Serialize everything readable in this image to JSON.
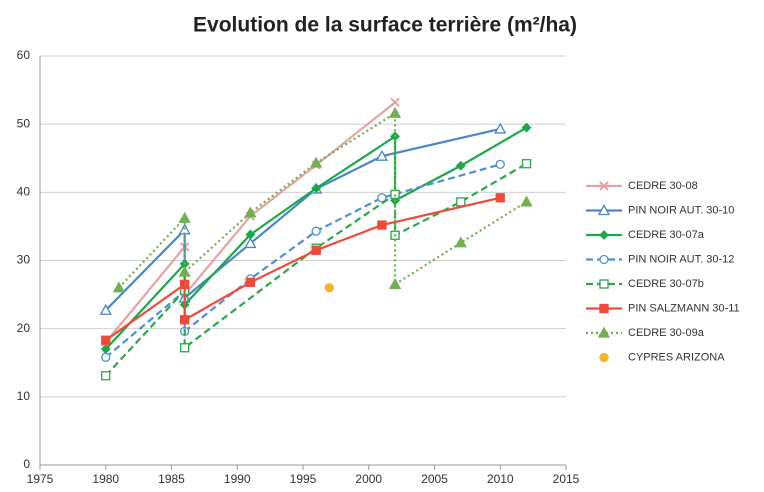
{
  "chart_data": {
    "type": "line",
    "title": "Evolution de la surface terrière (m²/ha)",
    "xlim": [
      1975,
      2015
    ],
    "xticks": [
      1975,
      1980,
      1985,
      1990,
      1995,
      2000,
      2005,
      2010,
      2015
    ],
    "ylim": [
      0,
      60
    ],
    "yticks": [
      0,
      10,
      20,
      30,
      40,
      50,
      60
    ],
    "grid": true,
    "legend": "right",
    "series": [
      {
        "name": "CEDRE 30-08",
        "color": "#e6a3a3",
        "line": "solid",
        "marker": "cross",
        "x": [
          1980,
          1986,
          1986,
          1991,
          1996,
          2002
        ],
        "values": [
          18,
          32,
          25,
          36.5,
          44,
          53.2
        ]
      },
      {
        "name": "PIN NOIR AUT. 30-10",
        "color": "#4a86c8",
        "line": "solid",
        "marker": "triangle-open",
        "x": [
          1980,
          1986,
          1986,
          1991,
          1996,
          2001,
          2010
        ],
        "values": [
          22.7,
          34.5,
          24.5,
          32.5,
          40.5,
          45.3,
          49.3
        ]
      },
      {
        "name": "CEDRE 30-07a",
        "color": "#1aa84b",
        "line": "solid",
        "marker": "diamond",
        "x": [
          1980,
          1986,
          1986,
          1991,
          1996,
          2002,
          2002,
          2007,
          2012
        ],
        "values": [
          17,
          29.5,
          23.5,
          33.8,
          40.6,
          48.2,
          38.8,
          43.9,
          49.5
        ]
      },
      {
        "name": "PIN NOIR AUT. 30-12",
        "color": "#4f8fd6",
        "line": "dashed",
        "marker": "circle-open",
        "x": [
          1980,
          1986,
          1986,
          1991,
          1996,
          2001,
          2010
        ],
        "values": [
          15.8,
          25.5,
          19.6,
          27.3,
          34.3,
          39.2,
          44.1
        ]
      },
      {
        "name": "CEDRE 30-07b",
        "color": "#2aa84a",
        "line": "dashed",
        "marker": "square-open",
        "x": [
          1980,
          1986,
          1986,
          1996,
          2002,
          2002,
          2007,
          2012
        ],
        "values": [
          13.1,
          25.6,
          17.2,
          31.8,
          39.7,
          33.7,
          38.6,
          44.2
        ]
      },
      {
        "name": "PIN SALZMANN 30-11",
        "color": "#f04a3a",
        "line": "solid",
        "marker": "square",
        "x": [
          1980,
          1986,
          1986,
          1991,
          1996,
          2001,
          2010
        ],
        "values": [
          18.3,
          26.5,
          21.3,
          26.8,
          31.5,
          35.2,
          39.2
        ]
      },
      {
        "name": "CEDRE 30-09a",
        "color": "#6fb14f",
        "line": "dotted",
        "marker": "triangle",
        "x": [
          1981,
          1986,
          1986,
          1991,
          1996,
          2002,
          2002,
          2007,
          2012
        ],
        "values": [
          26,
          36.2,
          28.3,
          37,
          44.3,
          51.6,
          26.5,
          32.6,
          38.6
        ]
      },
      {
        "name": "CYPRES ARIZONA",
        "color": "#f5b327",
        "line": "none",
        "marker": "circle",
        "x": [
          1997
        ],
        "values": [
          26
        ]
      }
    ]
  }
}
